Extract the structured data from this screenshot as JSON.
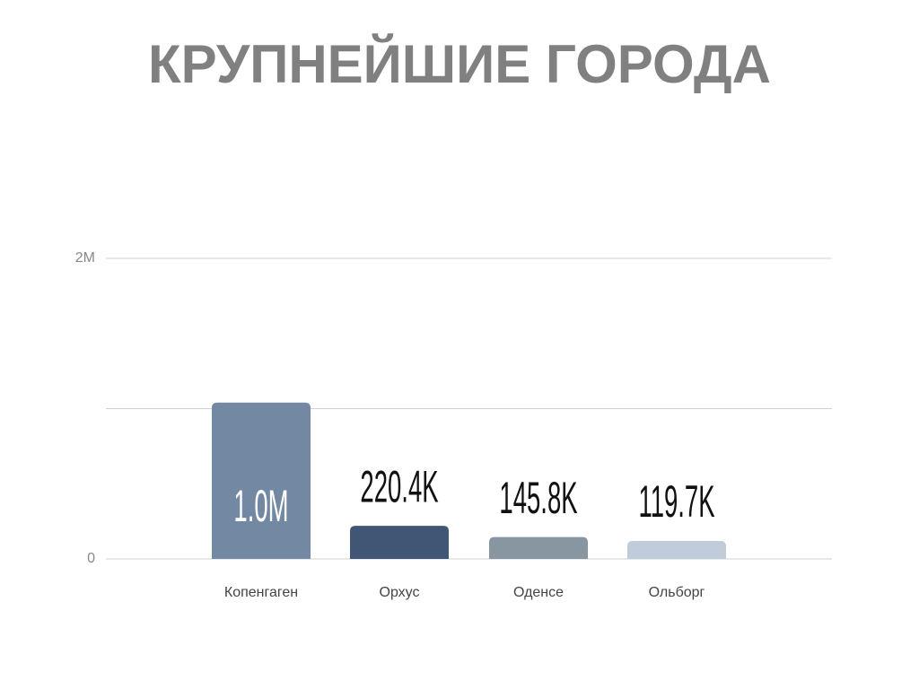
{
  "chart_data": {
    "type": "bar",
    "title": "КРУПНЕЙШИЕ ГОРОДА",
    "categories": [
      "Копенгаген",
      "Орхус",
      "Оденсе",
      "Ольборг"
    ],
    "values": [
      1040000,
      220400,
      145800,
      119700
    ],
    "value_labels": [
      "1.0M",
      "220.4K",
      "145.8K",
      "119.7K"
    ],
    "colors": [
      "#7388a3",
      "#415574",
      "#8796a0",
      "#c0ccd9"
    ],
    "ylim": [
      0,
      2000000
    ],
    "yticks": [
      0,
      {
        "value": 1000000,
        "label": null
      },
      {
        "value": 2000000,
        "label": "2M"
      }
    ],
    "grid": true
  }
}
